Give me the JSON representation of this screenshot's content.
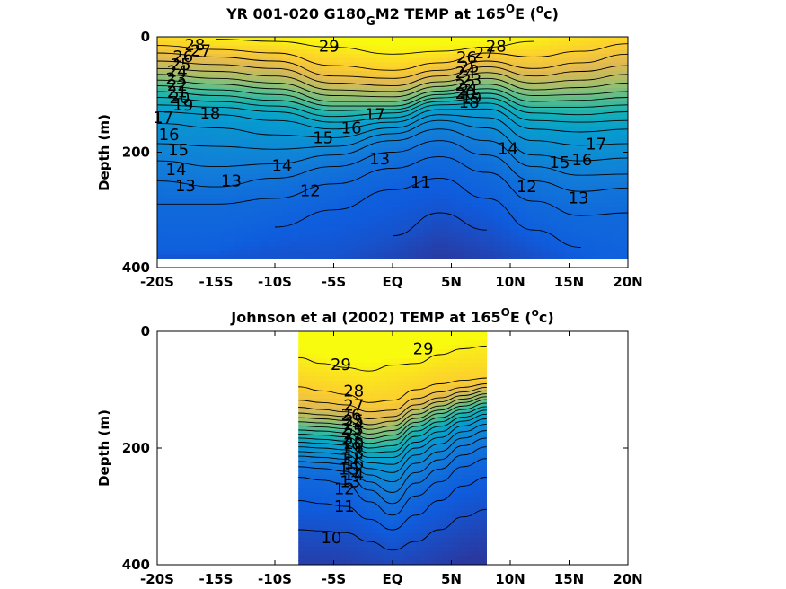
{
  "chart_data": [
    {
      "type": "contour",
      "title": "YR 001-020 G180_G M2 TEMP at 165°E (°c)",
      "title_parts": {
        "pre": "YR 001-020 G180",
        "sub": "G",
        "mid": "M2 TEMP at 165",
        "sup1": "O",
        "post1": "E (",
        "sup2": "o",
        "post2": "c)"
      },
      "xlabel": "",
      "ylabel": "Depth (m)",
      "xlim": [
        -20,
        20
      ],
      "ylim": [
        0,
        400
      ],
      "y_reversed": true,
      "x_ticks": [
        -20,
        -15,
        -10,
        -5,
        0,
        5,
        10,
        15,
        20
      ],
      "x_tick_labels": [
        "-20S",
        "-15S",
        "-10S",
        "-5S",
        "EQ",
        "5N",
        "10N",
        "15N",
        "20N"
      ],
      "y_ticks": [
        0,
        200,
        400
      ],
      "y_tick_labels": [
        "0",
        "200",
        "400"
      ],
      "data_extent": {
        "x": [
          -20,
          20
        ],
        "y": [
          0,
          385
        ]
      },
      "contour_levels": [
        29,
        28,
        27,
        26,
        25,
        24,
        23,
        22,
        21,
        20,
        19,
        18,
        17,
        16,
        15,
        14,
        13,
        12,
        11
      ],
      "isotherm_depth_points_x": [
        -20,
        -15,
        -10,
        -5,
        0,
        4,
        8,
        12,
        16,
        20
      ],
      "isotherms": [
        {
          "t": 29,
          "depth": [
            null,
            4,
            8,
            18,
            30,
            25,
            18,
            8,
            null,
            null
          ]
        },
        {
          "t": 28,
          "depth": [
            15,
            22,
            28,
            50,
            58,
            45,
            28,
            35,
            25,
            12
          ]
        },
        {
          "t": 27,
          "depth": [
            28,
            35,
            42,
            68,
            72,
            58,
            42,
            55,
            45,
            30
          ]
        },
        {
          "t": 26,
          "depth": [
            42,
            48,
            55,
            80,
            85,
            68,
            52,
            68,
            60,
            50
          ]
        },
        {
          "t": 25,
          "depth": [
            55,
            60,
            68,
            92,
            95,
            78,
            62,
            80,
            75,
            65
          ]
        },
        {
          "t": 24,
          "depth": [
            65,
            72,
            80,
            102,
            104,
            86,
            72,
            92,
            88,
            80
          ]
        },
        {
          "t": 23,
          "depth": [
            75,
            82,
            90,
            112,
            112,
            94,
            82,
            102,
            100,
            95
          ]
        },
        {
          "t": 22,
          "depth": [
            85,
            92,
            100,
            120,
            120,
            100,
            90,
            112,
            110,
            105
          ]
        },
        {
          "t": 21,
          "depth": [
            95,
            102,
            110,
            128,
            126,
            106,
            98,
            122,
            122,
            118
          ]
        },
        {
          "t": 20,
          "depth": [
            105,
            112,
            120,
            138,
            132,
            112,
            106,
            132,
            135,
            130
          ]
        },
        {
          "t": 19,
          "depth": [
            118,
            122,
            130,
            148,
            140,
            118,
            115,
            145,
            148,
            145
          ]
        },
        {
          "t": 18,
          "depth": [
            130,
            135,
            145,
            160,
            148,
            126,
            125,
            160,
            165,
            160
          ]
        },
        {
          "t": 17,
          "depth": [
            150,
            158,
            170,
            175,
            158,
            135,
            140,
            180,
            188,
            185
          ]
        },
        {
          "t": 16,
          "depth": [
            185,
            190,
            195,
            190,
            168,
            145,
            158,
            205,
            215,
            210
          ]
        },
        {
          "t": 15,
          "depth": [
            215,
            225,
            220,
            205,
            180,
            160,
            180,
            225,
            240,
            238
          ]
        },
        {
          "t": 14,
          "depth": [
            250,
            260,
            245,
            225,
            200,
            180,
            205,
            250,
            268,
            262
          ]
        },
        {
          "t": 13,
          "depth": [
            290,
            290,
            280,
            255,
            228,
            208,
            235,
            285,
            310,
            305
          ]
        },
        {
          "t": 12,
          "depth": [
            null,
            null,
            330,
            300,
            265,
            245,
            280,
            335,
            365,
            null
          ]
        },
        {
          "t": 11,
          "depth": [
            null,
            null,
            null,
            null,
            345,
            305,
            335,
            null,
            null,
            null
          ]
        }
      ],
      "contour_labels": [
        {
          "text": "29",
          "x": -5.4,
          "depth": 16
        },
        {
          "text": "28",
          "x": -16.8,
          "depth": 14
        },
        {
          "text": "28",
          "x": 8.8,
          "depth": 16
        },
        {
          "text": "27",
          "x": -16.3,
          "depth": 24
        },
        {
          "text": "27",
          "x": 7.8,
          "depth": 28
        },
        {
          "text": "26",
          "x": -17.8,
          "depth": 34
        },
        {
          "text": "26",
          "x": 6.3,
          "depth": 36
        },
        {
          "text": "25",
          "x": -18,
          "depth": 48
        },
        {
          "text": "25",
          "x": 6.5,
          "depth": 52
        },
        {
          "text": "24",
          "x": -18.3,
          "depth": 60
        },
        {
          "text": "24",
          "x": 6.2,
          "depth": 62
        },
        {
          "text": "23",
          "x": -18.4,
          "depth": 72
        },
        {
          "text": "23",
          "x": 6.7,
          "depth": 75
        },
        {
          "text": "22",
          "x": -18.3,
          "depth": 84
        },
        {
          "text": "22",
          "x": 6.2,
          "depth": 84
        },
        {
          "text": "21",
          "x": -18.3,
          "depth": 96
        },
        {
          "text": "21",
          "x": 6.5,
          "depth": 92
        },
        {
          "text": "20",
          "x": -18.1,
          "depth": 106
        },
        {
          "text": "20",
          "x": 6.2,
          "depth": 98
        },
        {
          "text": "19",
          "x": -17.8,
          "depth": 118
        },
        {
          "text": "19",
          "x": 6.7,
          "depth": 106
        },
        {
          "text": "18",
          "x": -15.5,
          "depth": 132
        },
        {
          "text": "18",
          "x": 6.5,
          "depth": 114
        },
        {
          "text": "17",
          "x": -19.5,
          "depth": 140
        },
        {
          "text": "17",
          "x": -1.5,
          "depth": 135
        },
        {
          "text": "17",
          "x": 17.3,
          "depth": 186
        },
        {
          "text": "16",
          "x": -19,
          "depth": 170
        },
        {
          "text": "16",
          "x": -3.5,
          "depth": 158
        },
        {
          "text": "16",
          "x": 16.1,
          "depth": 213
        },
        {
          "text": "15",
          "x": -18.2,
          "depth": 196
        },
        {
          "text": "15",
          "x": -5.9,
          "depth": 175
        },
        {
          "text": "15",
          "x": 14.2,
          "depth": 218
        },
        {
          "text": "14",
          "x": -18.4,
          "depth": 230
        },
        {
          "text": "14",
          "x": -9.4,
          "depth": 223
        },
        {
          "text": "14",
          "x": 9.8,
          "depth": 194
        },
        {
          "text": "13",
          "x": -17.6,
          "depth": 258
        },
        {
          "text": "13",
          "x": -13.7,
          "depth": 250
        },
        {
          "text": "13",
          "x": -1.1,
          "depth": 212
        },
        {
          "text": "13",
          "x": 15.8,
          "depth": 279
        },
        {
          "text": "12",
          "x": -7,
          "depth": 267
        },
        {
          "text": "12",
          "x": 11.4,
          "depth": 260
        },
        {
          "text": "11",
          "x": 2.4,
          "depth": 252
        }
      ]
    },
    {
      "type": "contour",
      "title": "Johnson et al (2002) TEMP at 165°E (°c)",
      "title_parts": {
        "pre": "Johnson et al (2002) TEMP at 165",
        "sup1": "O",
        "post1": "E (",
        "sup2": "o",
        "post2": "c)"
      },
      "xlabel": "",
      "ylabel": "Depth (m)",
      "xlim": [
        -20,
        20
      ],
      "ylim": [
        0,
        400
      ],
      "y_reversed": true,
      "x_ticks": [
        -20,
        -15,
        -10,
        -5,
        0,
        5,
        10,
        15,
        20
      ],
      "x_tick_labels": [
        "-20S",
        "-15S",
        "-10S",
        "-5S",
        "EQ",
        "5N",
        "10N",
        "15N",
        "20N"
      ],
      "y_ticks": [
        0,
        200,
        400
      ],
      "y_tick_labels": [
        "0",
        "200",
        "400"
      ],
      "data_extent": {
        "x": [
          -8,
          8
        ],
        "y": [
          0,
          400
        ]
      },
      "contour_levels": [
        29,
        28,
        27,
        26,
        25,
        24,
        23,
        22,
        21,
        20,
        19,
        18,
        17,
        16,
        15,
        14,
        13,
        12,
        11,
        10
      ],
      "isotherm_depth_points_x": [
        -8,
        -6,
        -4,
        -2,
        0,
        2,
        4,
        6,
        8
      ],
      "isotherms": [
        {
          "t": 29,
          "depth": [
            45,
            55,
            62,
            68,
            58,
            55,
            40,
            30,
            25
          ]
        },
        {
          "t": 28,
          "depth": [
            95,
            102,
            108,
            122,
            118,
            100,
            90,
            84,
            80
          ]
        },
        {
          "t": 27,
          "depth": [
            118,
            122,
            126,
            138,
            135,
            115,
            104,
            96,
            90
          ]
        },
        {
          "t": 26,
          "depth": [
            130,
            134,
            138,
            150,
            146,
            126,
            114,
            104,
            96
          ]
        },
        {
          "t": 25,
          "depth": [
            140,
            143,
            146,
            160,
            154,
            134,
            121,
            110,
            102
          ]
        },
        {
          "t": 24,
          "depth": [
            148,
            150,
            153,
            168,
            162,
            142,
            128,
            116,
            107
          ]
        },
        {
          "t": 23,
          "depth": [
            155,
            157,
            160,
            176,
            170,
            149,
            135,
            122,
            112
          ]
        },
        {
          "t": 22,
          "depth": [
            162,
            164,
            167,
            184,
            178,
            156,
            141,
            128,
            117
          ]
        },
        {
          "t": 21,
          "depth": [
            169,
            171,
            174,
            192,
            186,
            163,
            148,
            134,
            123
          ]
        },
        {
          "t": 20,
          "depth": [
            176,
            178,
            181,
            200,
            196,
            171,
            155,
            140,
            129
          ]
        },
        {
          "t": 19,
          "depth": [
            183,
            185,
            188,
            208,
            206,
            180,
            163,
            147,
            135
          ]
        },
        {
          "t": 18,
          "depth": [
            190,
            192,
            195,
            216,
            216,
            190,
            172,
            154,
            142
          ]
        },
        {
          "t": 17,
          "depth": [
            198,
            200,
            203,
            225,
            228,
            200,
            182,
            162,
            150
          ]
        },
        {
          "t": 16,
          "depth": [
            206,
            208,
            211,
            235,
            242,
            212,
            193,
            172,
            159
          ]
        },
        {
          "t": 15,
          "depth": [
            214,
            216,
            219,
            246,
            258,
            226,
            206,
            183,
            170
          ]
        },
        {
          "t": 14,
          "depth": [
            223,
            225,
            228,
            258,
            276,
            242,
            220,
            196,
            183
          ]
        },
        {
          "t": 13,
          "depth": [
            232,
            235,
            240,
            272,
            295,
            260,
            236,
            212,
            198
          ]
        },
        {
          "t": 12,
          "depth": [
            250,
            255,
            262,
            292,
            315,
            282,
            258,
            232,
            218
          ]
        },
        {
          "t": 11,
          "depth": [
            290,
            295,
            300,
            322,
            340,
            315,
            290,
            265,
            250
          ]
        },
        {
          "t": 10,
          "depth": [
            340,
            342,
            345,
            360,
            375,
            360,
            340,
            318,
            305
          ]
        }
      ],
      "contour_labels": [
        {
          "text": "29",
          "x": -4.4,
          "depth": 57
        },
        {
          "text": "29",
          "x": 2.6,
          "depth": 30
        },
        {
          "text": "28",
          "x": -3.3,
          "depth": 102
        },
        {
          "text": "27",
          "x": -3.3,
          "depth": 127
        },
        {
          "text": "26",
          "x": -3.5,
          "depth": 143
        },
        {
          "text": "25",
          "x": -3.3,
          "depth": 153
        },
        {
          "text": "24",
          "x": -3.3,
          "depth": 160
        },
        {
          "text": "23",
          "x": -3.5,
          "depth": 168
        },
        {
          "text": "22",
          "x": -3.3,
          "depth": 176
        },
        {
          "text": "21",
          "x": -3.4,
          "depth": 184
        },
        {
          "text": "20",
          "x": -3.3,
          "depth": 192
        },
        {
          "text": "19",
          "x": -3.5,
          "depth": 200
        },
        {
          "text": "18",
          "x": -3.3,
          "depth": 208
        },
        {
          "text": "17",
          "x": -3.6,
          "depth": 218
        },
        {
          "text": "16",
          "x": -3.3,
          "depth": 226
        },
        {
          "text": "15",
          "x": -3.7,
          "depth": 236
        },
        {
          "text": "14",
          "x": -3.3,
          "depth": 246
        },
        {
          "text": "13",
          "x": -3.6,
          "depth": 258
        },
        {
          "text": "12",
          "x": -4.1,
          "depth": 270
        },
        {
          "text": "11",
          "x": -4.1,
          "depth": 300
        },
        {
          "text": "10",
          "x": -5.2,
          "depth": 354
        }
      ]
    }
  ]
}
